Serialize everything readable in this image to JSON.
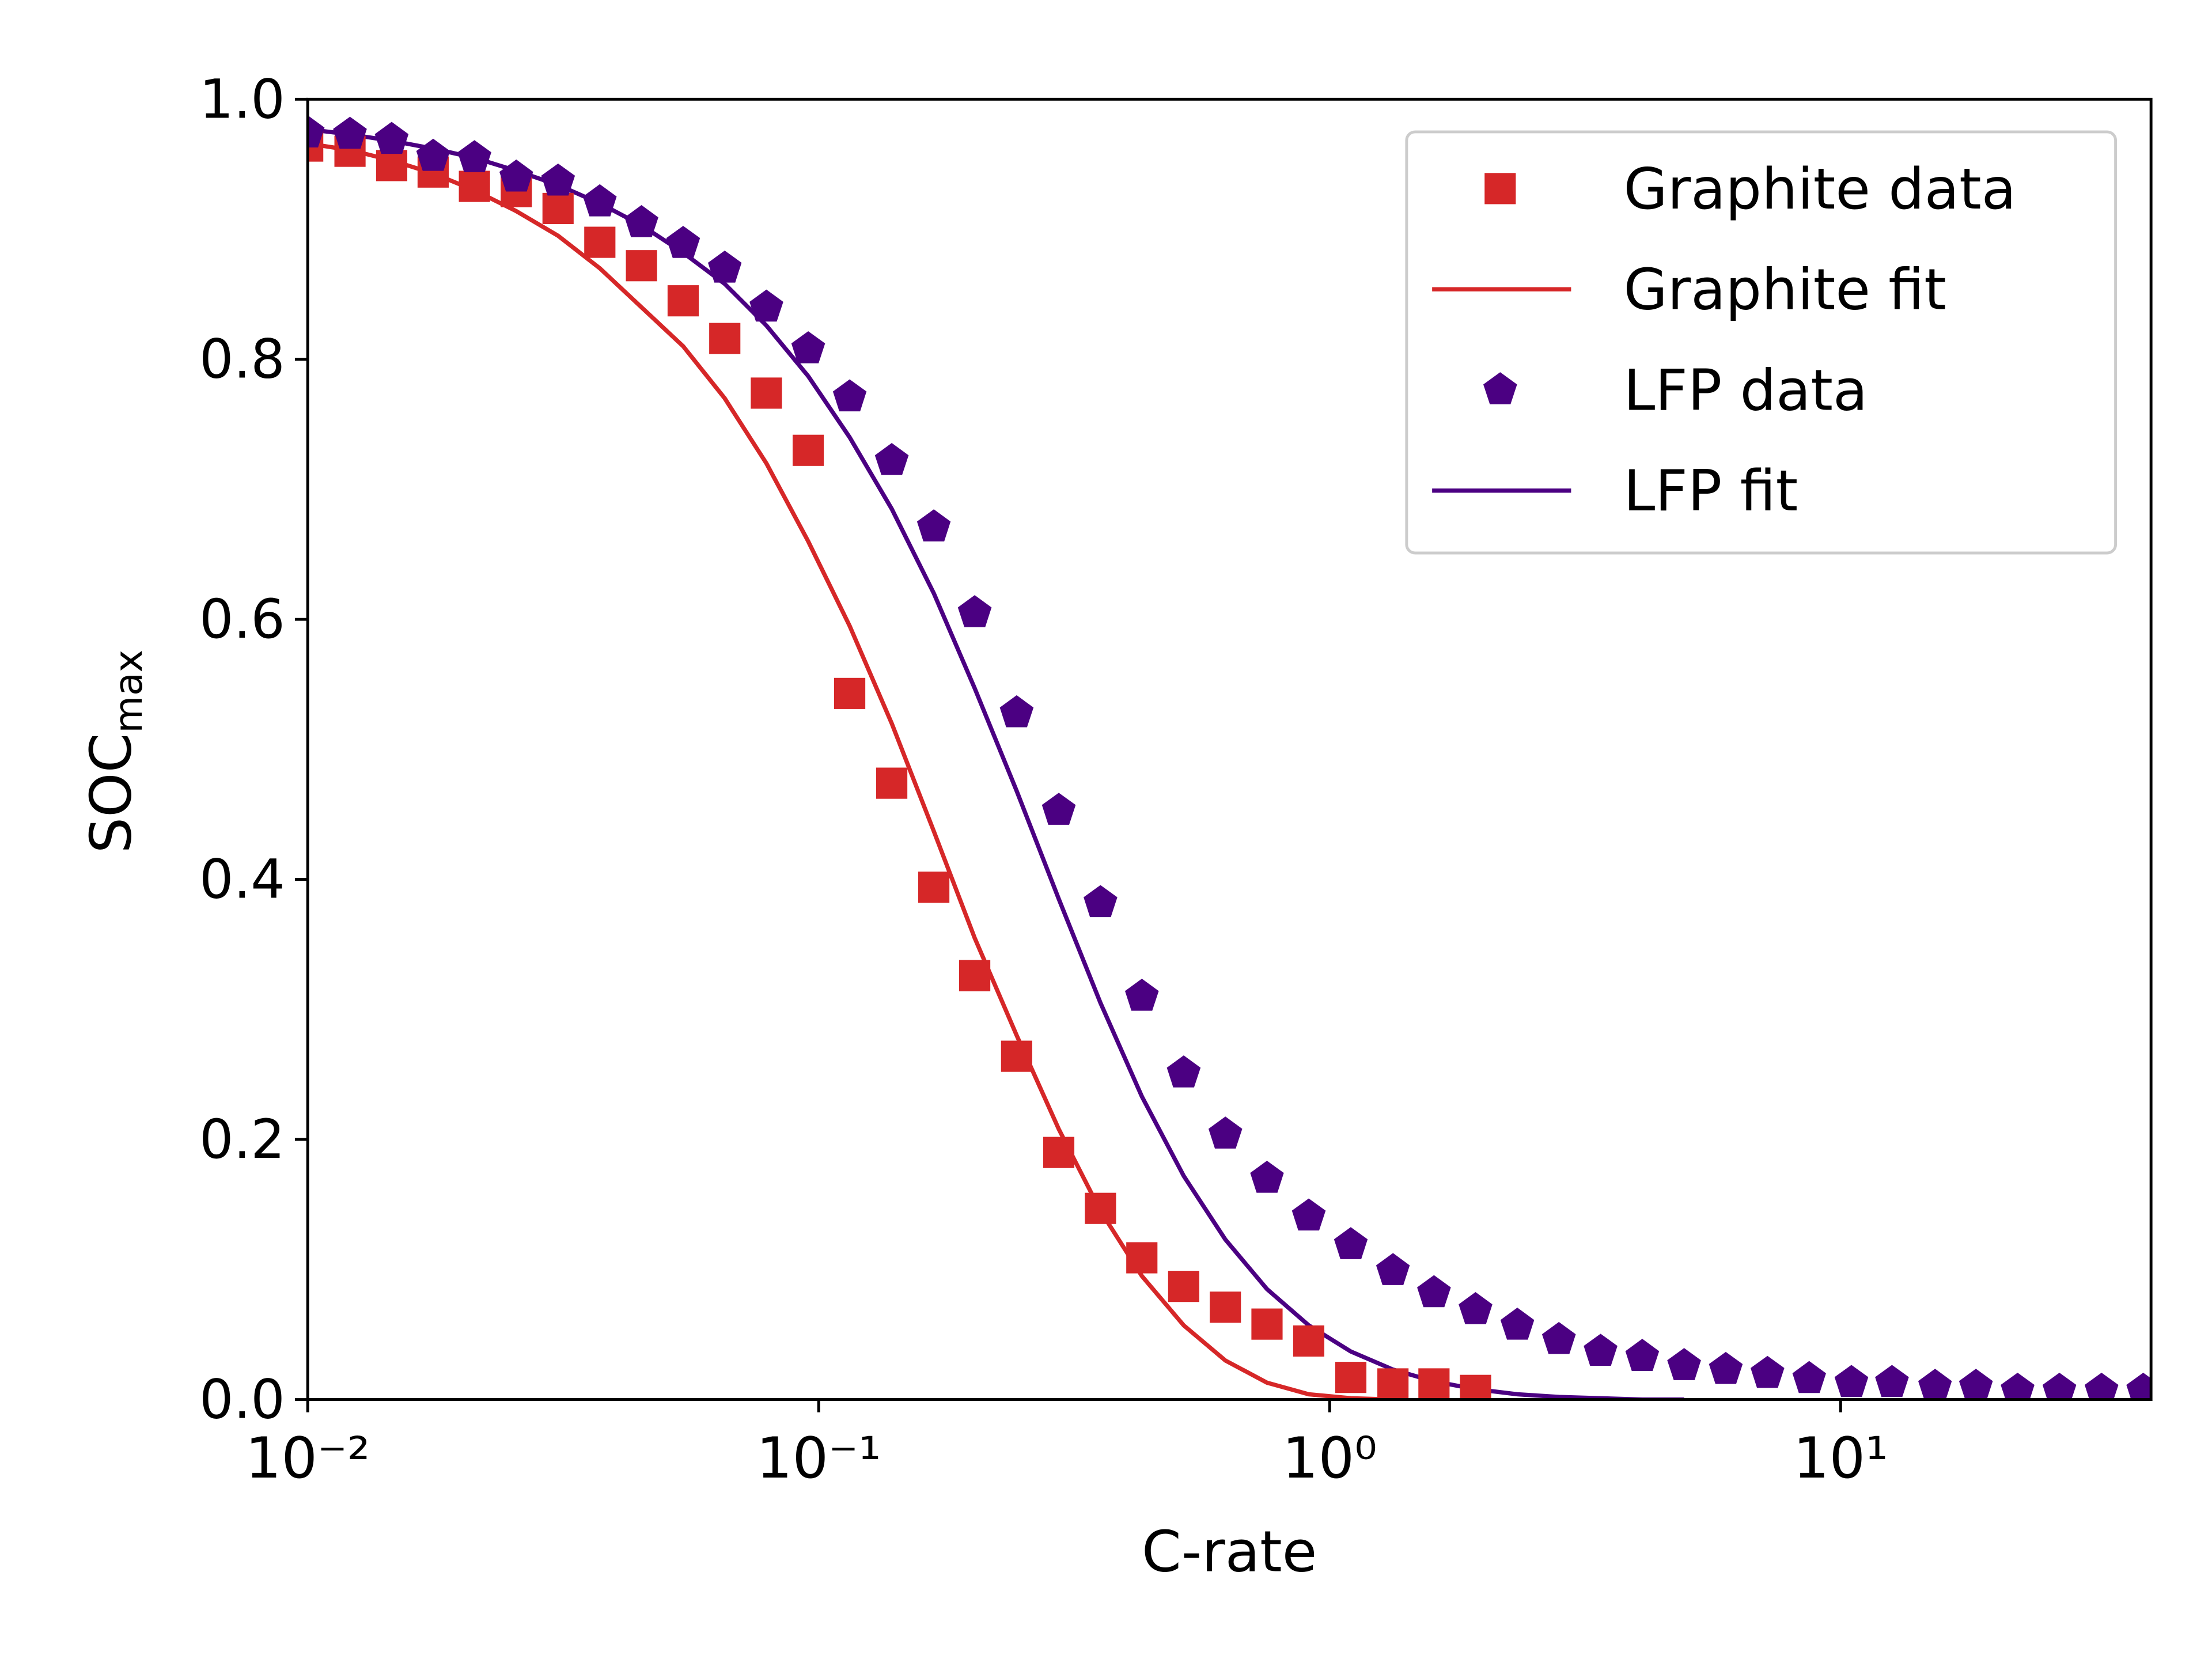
{
  "chart_data": {
    "type": "scatter-line",
    "xlabel": "C-rate",
    "ylabel": {
      "text": "SOC",
      "subscript": "max"
    },
    "xscale": "log",
    "xlim": [
      0.01,
      40.5
    ],
    "ylim": [
      0,
      1
    ],
    "xticks": [
      {
        "value": 0.01,
        "label": "10⁻²"
      },
      {
        "value": 0.1,
        "label": "10⁻¹"
      },
      {
        "value": 1,
        "label": "10⁰"
      },
      {
        "value": 10,
        "label": "10¹"
      }
    ],
    "yticks": [
      {
        "value": 0,
        "label": "0.0"
      },
      0.2,
      0.4,
      0.6,
      0.8,
      {
        "value": 1,
        "label": "1.0"
      }
    ],
    "legend": "upper right",
    "series": [
      {
        "name": "Graphite data",
        "kind": "marker",
        "marker": "square",
        "color": "#d62728",
        "x": [
          0.01,
          0.0121,
          0.0146,
          0.0176,
          0.0212,
          0.0256,
          0.0309,
          0.0373,
          0.045,
          0.0543,
          0.0655,
          0.079,
          0.0954,
          0.115,
          0.139,
          0.168,
          0.202,
          0.244,
          0.295,
          0.356,
          0.429,
          0.518,
          0.625,
          0.754,
          0.91,
          1.1,
          1.33,
          1.6,
          1.93
        ],
        "values": [
          0.964,
          0.96,
          0.949,
          0.944,
          0.933,
          0.929,
          0.916,
          0.89,
          0.872,
          0.845,
          0.816,
          0.774,
          0.73,
          0.543,
          0.474,
          0.394,
          0.326,
          0.264,
          0.19,
          0.147,
          0.109,
          0.087,
          0.071,
          0.058,
          0.045,
          0.017,
          0.012,
          0.012,
          0.007
        ]
      },
      {
        "name": "Graphite fit",
        "kind": "line",
        "color": "#d62728",
        "x": [
          0.01,
          0.0121,
          0.0146,
          0.0176,
          0.0212,
          0.0256,
          0.0309,
          0.0373,
          0.045,
          0.0543,
          0.0655,
          0.079,
          0.0954,
          0.115,
          0.139,
          0.168,
          0.202,
          0.244,
          0.295,
          0.356,
          0.429,
          0.518,
          0.625,
          0.754,
          0.91,
          1.1,
          1.33
        ],
        "values": [
          0.966,
          0.961,
          0.953,
          0.943,
          0.93,
          0.914,
          0.895,
          0.87,
          0.84,
          0.81,
          0.77,
          0.72,
          0.66,
          0.595,
          0.52,
          0.437,
          0.355,
          0.28,
          0.208,
          0.145,
          0.095,
          0.057,
          0.03,
          0.013,
          0.004,
          0.001,
          0
        ]
      },
      {
        "name": "LFP data",
        "kind": "marker",
        "marker": "pentagon",
        "color": "#4b0082",
        "x": [
          0.01,
          0.0121,
          0.0146,
          0.0176,
          0.0212,
          0.0256,
          0.0309,
          0.0373,
          0.045,
          0.0543,
          0.0655,
          0.079,
          0.0954,
          0.115,
          0.139,
          0.168,
          0.202,
          0.244,
          0.295,
          0.356,
          0.429,
          0.518,
          0.625,
          0.754,
          0.91,
          1.1,
          1.33,
          1.6,
          1.93,
          2.33,
          2.81,
          3.39,
          4.09,
          4.94,
          5.96,
          7.19,
          8.68,
          10.5,
          12.6,
          15.3,
          18.4,
          22.2,
          26.8,
          32.4,
          39.1
        ],
        "values": [
          0.974,
          0.973,
          0.969,
          0.956,
          0.955,
          0.94,
          0.937,
          0.921,
          0.905,
          0.889,
          0.87,
          0.84,
          0.808,
          0.771,
          0.722,
          0.671,
          0.605,
          0.528,
          0.453,
          0.382,
          0.31,
          0.251,
          0.204,
          0.17,
          0.141,
          0.119,
          0.099,
          0.082,
          0.069,
          0.057,
          0.046,
          0.037,
          0.033,
          0.026,
          0.023,
          0.02,
          0.016,
          0.013,
          0.013,
          0.01,
          0.01,
          0.007,
          0.007,
          0.007,
          0.007
        ]
      },
      {
        "name": "LFP fit",
        "kind": "line",
        "color": "#4b0082",
        "x": [
          0.01,
          0.0121,
          0.0146,
          0.0176,
          0.0212,
          0.0256,
          0.0309,
          0.0373,
          0.045,
          0.0543,
          0.0655,
          0.079,
          0.0954,
          0.115,
          0.139,
          0.168,
          0.202,
          0.244,
          0.295,
          0.356,
          0.429,
          0.518,
          0.625,
          0.754,
          0.91,
          1.1,
          1.33,
          1.6,
          1.93,
          2.33,
          2.81,
          3.39,
          4.09,
          4.94
        ],
        "values": [
          0.977,
          0.973,
          0.968,
          0.962,
          0.955,
          0.945,
          0.934,
          0.92,
          0.903,
          0.882,
          0.858,
          0.826,
          0.787,
          0.74,
          0.685,
          0.62,
          0.547,
          0.468,
          0.385,
          0.305,
          0.233,
          0.172,
          0.123,
          0.085,
          0.057,
          0.037,
          0.023,
          0.014,
          0.008,
          0.004,
          0.002,
          0.001,
          0,
          0
        ]
      }
    ]
  }
}
